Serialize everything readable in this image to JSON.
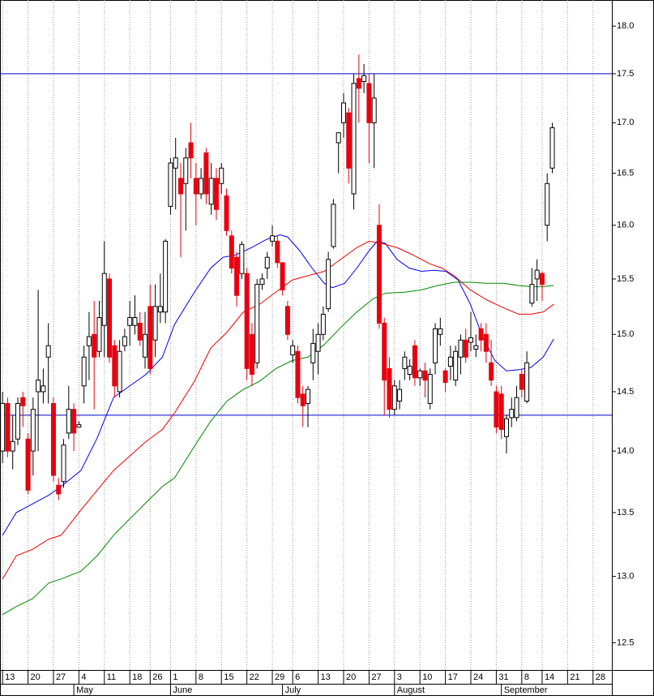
{
  "chart_data": {
    "type": "candlestick",
    "log_scale": true,
    "up_color": "#ffffff",
    "down_color": "#e8000f",
    "xlim": [
      -0.5,
      119.7
    ],
    "ylim": [
      12.3,
      18.28
    ],
    "yticks": [
      12.5,
      {
        "value": 13,
        "label": "13.0"
      },
      13.5,
      {
        "value": 14,
        "label": "14.0"
      },
      14.5,
      {
        "value": 15,
        "label": "15.0"
      },
      15.5,
      {
        "value": 16,
        "label": "16.0"
      },
      16.5,
      {
        "value": 17,
        "label": "17.0"
      },
      17.5,
      {
        "value": 18,
        "label": "18.0"
      }
    ],
    "xticks": [
      {
        "value": 0,
        "label": "13"
      },
      {
        "value": 5,
        "label": "20"
      },
      {
        "value": 10,
        "label": "27"
      },
      {
        "value": 15,
        "label": "4"
      },
      {
        "value": 20,
        "label": "11"
      },
      {
        "value": 25,
        "label": "18"
      },
      {
        "value": 29,
        "label": "26"
      },
      {
        "value": 33,
        "label": "1"
      },
      {
        "value": 38,
        "label": "8"
      },
      {
        "value": 43,
        "label": "15"
      },
      {
        "value": 48,
        "label": "22"
      },
      {
        "value": 53,
        "label": "29"
      },
      {
        "value": 57,
        "label": "6"
      },
      {
        "value": 62,
        "label": "13"
      },
      {
        "value": 67,
        "label": "20"
      },
      {
        "value": 72,
        "label": "27"
      },
      {
        "value": 77,
        "label": "3"
      },
      {
        "value": 82,
        "label": "10"
      },
      {
        "value": 87,
        "label": "17"
      },
      {
        "value": 92,
        "label": "24"
      },
      {
        "value": 97,
        "label": "31"
      },
      {
        "value": 102,
        "label": "8"
      },
      {
        "value": 106,
        "label": "14"
      },
      {
        "value": 111,
        "label": "21"
      },
      {
        "value": 116,
        "label": "28"
      }
    ],
    "month_ticks": [
      {
        "value": 14,
        "label": "May"
      },
      {
        "value": 33,
        "label": "June"
      },
      {
        "value": 55,
        "label": "July"
      },
      {
        "value": 77,
        "label": "August"
      },
      {
        "value": 98,
        "label": "September"
      }
    ],
    "hlines": {
      "color": "#0000cc",
      "values": [
        17.5,
        14.3
      ]
    },
    "open": [
      14.0,
      14.4,
      14.0,
      14.1,
      14.45,
      14.1,
      14.0,
      14.5,
      14.5,
      14.8,
      14.4,
      13.72,
      13.75,
      14.15,
      14.35,
      14.2,
      14.55,
      14.9,
      15.0,
      14.85,
      15.08,
      15.5,
      14.9,
      14.5,
      14.9,
      15.08,
      15.08,
      15.1,
      14.8,
      15.25,
      14.95,
      15.2,
      15.2,
      16.18,
      16.55,
      16.45,
      16.4,
      16.8,
      16.45,
      16.3,
      16.7,
      16.2,
      16.45,
      16.4,
      16.28,
      15.9,
      15.7,
      15.55,
      15.55,
      15.0,
      14.75,
      15.45,
      15.6,
      15.85,
      15.85,
      15.65,
      15.25,
      14.82,
      14.85,
      14.48,
      14.4,
      14.75,
      14.85,
      15.0,
      15.23,
      15.8,
      16.8,
      17.0,
      17.1,
      16.3,
      17.45,
      17.42,
      17.4,
      17.0,
      16.0,
      15.1,
      14.7,
      14.35,
      14.42,
      14.7,
      14.65,
      14.9,
      14.62,
      14.68,
      14.4,
      14.75,
      15.0,
      14.68,
      14.72,
      14.6,
      14.8,
      14.95,
      14.93,
      14.87,
      15.05,
      15.0,
      14.75,
      14.5,
      14.48,
      14.12,
      14.28,
      14.28,
      14.65,
      14.42,
      15.28,
      15.5,
      15.55,
      16.0,
      16.55
    ],
    "high": [
      14.5,
      14.45,
      14.3,
      14.45,
      14.5,
      14.15,
      14.45,
      15.4,
      14.7,
      15.1,
      14.45,
      13.78,
      14.1,
      14.55,
      14.4,
      14.25,
      14.9,
      15.2,
      15.3,
      15.3,
      15.85,
      15.55,
      14.95,
      14.95,
      15.05,
      15.3,
      15.35,
      15.2,
      15.2,
      15.45,
      15.45,
      15.55,
      15.87,
      16.65,
      16.85,
      16.6,
      16.75,
      17.0,
      16.6,
      16.55,
      16.75,
      16.6,
      16.55,
      16.6,
      16.35,
      15.95,
      15.75,
      15.85,
      15.6,
      15.1,
      15.5,
      15.55,
      15.75,
      16.0,
      15.9,
      15.65,
      15.3,
      14.95,
      14.9,
      14.55,
      14.55,
      15.05,
      15.1,
      15.25,
      15.75,
      16.25,
      16.9,
      17.3,
      17.15,
      17.5,
      17.7,
      17.6,
      17.5,
      17.5,
      16.2,
      15.15,
      14.8,
      14.6,
      14.6,
      14.85,
      14.78,
      14.95,
      14.7,
      14.75,
      14.7,
      15.1,
      15.15,
      14.7,
      14.9,
      14.9,
      15.0,
      15.05,
      15.2,
      15.0,
      15.1,
      15.1,
      14.95,
      14.55,
      14.55,
      14.3,
      14.45,
      14.55,
      14.7,
      14.85,
      15.6,
      15.68,
      15.57,
      16.5,
      17.0
    ],
    "low": [
      13.9,
      13.95,
      13.85,
      14.05,
      14.2,
      13.65,
      13.8,
      14.0,
      14.4,
      14.4,
      13.75,
      13.6,
      13.7,
      14.1,
      14.0,
      14.2,
      14.4,
      14.6,
      14.35,
      14.8,
      14.8,
      14.75,
      14.45,
      14.45,
      14.85,
      14.9,
      15.0,
      14.9,
      14.7,
      14.65,
      14.8,
      15.1,
      15.1,
      16.1,
      16.15,
      15.7,
      15.95,
      16.45,
      16.0,
      16.25,
      16.2,
      16.1,
      16.05,
      16.3,
      15.9,
      15.55,
      15.25,
      15.5,
      14.6,
      14.55,
      14.7,
      15.4,
      15.5,
      15.8,
      15.6,
      15.35,
      14.95,
      14.75,
      14.4,
      14.2,
      14.2,
      14.6,
      14.65,
      14.95,
      15.2,
      15.78,
      16.5,
      16.85,
      16.4,
      16.15,
      17.0,
      17.3,
      16.6,
      16.55,
      15.05,
      14.3,
      14.28,
      14.3,
      14.35,
      14.6,
      14.6,
      14.55,
      14.55,
      14.45,
      14.35,
      14.65,
      14.9,
      14.5,
      14.6,
      14.55,
      14.65,
      14.75,
      14.85,
      14.8,
      14.85,
      14.75,
      14.55,
      14.15,
      14.1,
      13.98,
      14.2,
      14.25,
      14.45,
      14.4,
      15.25,
      15.3,
      15.3,
      15.85,
      16.5
    ],
    "close": [
      14.4,
      14.0,
      14.08,
      14.4,
      14.38,
      13.68,
      14.35,
      14.6,
      14.55,
      14.9,
      13.8,
      13.65,
      14.05,
      14.35,
      14.15,
      14.22,
      14.8,
      14.98,
      14.8,
      15.15,
      15.55,
      14.8,
      14.55,
      14.85,
      14.98,
      15.15,
      15.15,
      14.95,
      15.0,
      14.7,
      15.25,
      15.25,
      15.85,
      16.6,
      16.65,
      16.3,
      16.65,
      16.65,
      16.3,
      16.45,
      16.3,
      16.45,
      16.15,
      16.55,
      15.95,
      15.6,
      15.35,
      15.82,
      14.7,
      14.65,
      15.45,
      15.5,
      15.7,
      15.9,
      15.65,
      15.4,
      15.0,
      14.9,
      14.45,
      14.38,
      14.52,
      14.92,
      15.0,
      15.18,
      15.68,
      16.2,
      16.9,
      17.2,
      16.55,
      17.4,
      17.35,
      17.48,
      17.0,
      17.25,
      15.1,
      14.6,
      14.35,
      14.55,
      14.52,
      14.8,
      14.72,
      14.62,
      14.68,
      14.6,
      14.65,
      15.05,
      15.05,
      14.58,
      14.8,
      14.85,
      14.95,
      14.8,
      14.97,
      14.9,
      14.95,
      14.85,
      14.6,
      14.2,
      14.18,
      14.27,
      14.35,
      14.45,
      14.52,
      14.75,
      15.45,
      15.58,
      15.45,
      16.4,
      16.95
    ],
    "series": [
      {
        "color": "#0000ee",
        "x": [
          0,
          2.7,
          5.9,
          9.1,
          11.5,
          15.4,
          18.6,
          21.8,
          25,
          28.2,
          31.4,
          33.8,
          37.7,
          40.9,
          43.3,
          45.7,
          48.9,
          52,
          54.5,
          56,
          58.4,
          60.8,
          63.2,
          64.8,
          67.2,
          69.6,
          72,
          73.6,
          75.2,
          77.5,
          79.9,
          82.3,
          84.7,
          87.1,
          89.5,
          91.9,
          94.3,
          96.7,
          99,
          101.4,
          103.8,
          106.2,
          108.3
        ],
        "values": [
          13.32,
          13.5,
          13.57,
          13.64,
          13.71,
          13.84,
          14.11,
          14.45,
          14.55,
          14.65,
          14.8,
          15.09,
          15.38,
          15.6,
          15.7,
          15.72,
          15.79,
          15.87,
          15.91,
          15.89,
          15.76,
          15.6,
          15.46,
          15.42,
          15.46,
          15.6,
          15.76,
          15.85,
          15.83,
          15.68,
          15.6,
          15.57,
          15.58,
          15.57,
          15.49,
          15.27,
          14.98,
          14.77,
          14.68,
          14.69,
          14.71,
          14.8,
          14.96
        ]
      },
      {
        "color": "#ee0000",
        "x": [
          0,
          2.7,
          5.9,
          9.1,
          11.5,
          15.4,
          18.6,
          21.8,
          25,
          28.2,
          31.4,
          33.8,
          37.7,
          40.9,
          44.1,
          47.3,
          50.5,
          53.7,
          56.9,
          60,
          63.2,
          66.4,
          69.6,
          72,
          74.4,
          77.5,
          80.7,
          83.9,
          86.3,
          88.7,
          91.9,
          95.1,
          98.3,
          101.4,
          103.8,
          106.2,
          108.3
        ],
        "values": [
          12.98,
          13.16,
          13.21,
          13.29,
          13.32,
          13.52,
          13.68,
          13.84,
          13.96,
          14.08,
          14.18,
          14.32,
          14.59,
          14.88,
          15.02,
          15.2,
          15.27,
          15.38,
          15.49,
          15.53,
          15.57,
          15.68,
          15.79,
          15.85,
          15.83,
          15.79,
          15.72,
          15.64,
          15.6,
          15.53,
          15.4,
          15.31,
          15.24,
          15.18,
          15.18,
          15.2,
          15.27
        ]
      },
      {
        "color": "#008800",
        "x": [
          0,
          2.7,
          5.9,
          9.1,
          11.5,
          15.4,
          18.6,
          21.8,
          25,
          28.2,
          31.4,
          33.8,
          37.7,
          40.9,
          44.1,
          47.3,
          50.5,
          53.7,
          56.9,
          60,
          63.2,
          66.4,
          69.6,
          72.8,
          75.2,
          79.1,
          82.3,
          85.5,
          88.7,
          91.9,
          95.1,
          98.3,
          101.4,
          103.8,
          106.2,
          108.3
        ],
        "values": [
          12.71,
          12.77,
          12.83,
          12.95,
          12.98,
          13.04,
          13.16,
          13.32,
          13.45,
          13.58,
          13.71,
          13.78,
          14.04,
          14.25,
          14.42,
          14.52,
          14.59,
          14.7,
          14.77,
          14.8,
          14.91,
          15.06,
          15.2,
          15.32,
          15.37,
          15.38,
          15.4,
          15.44,
          15.47,
          15.47,
          15.46,
          15.46,
          15.44,
          15.43,
          15.43,
          15.44
        ]
      }
    ]
  }
}
